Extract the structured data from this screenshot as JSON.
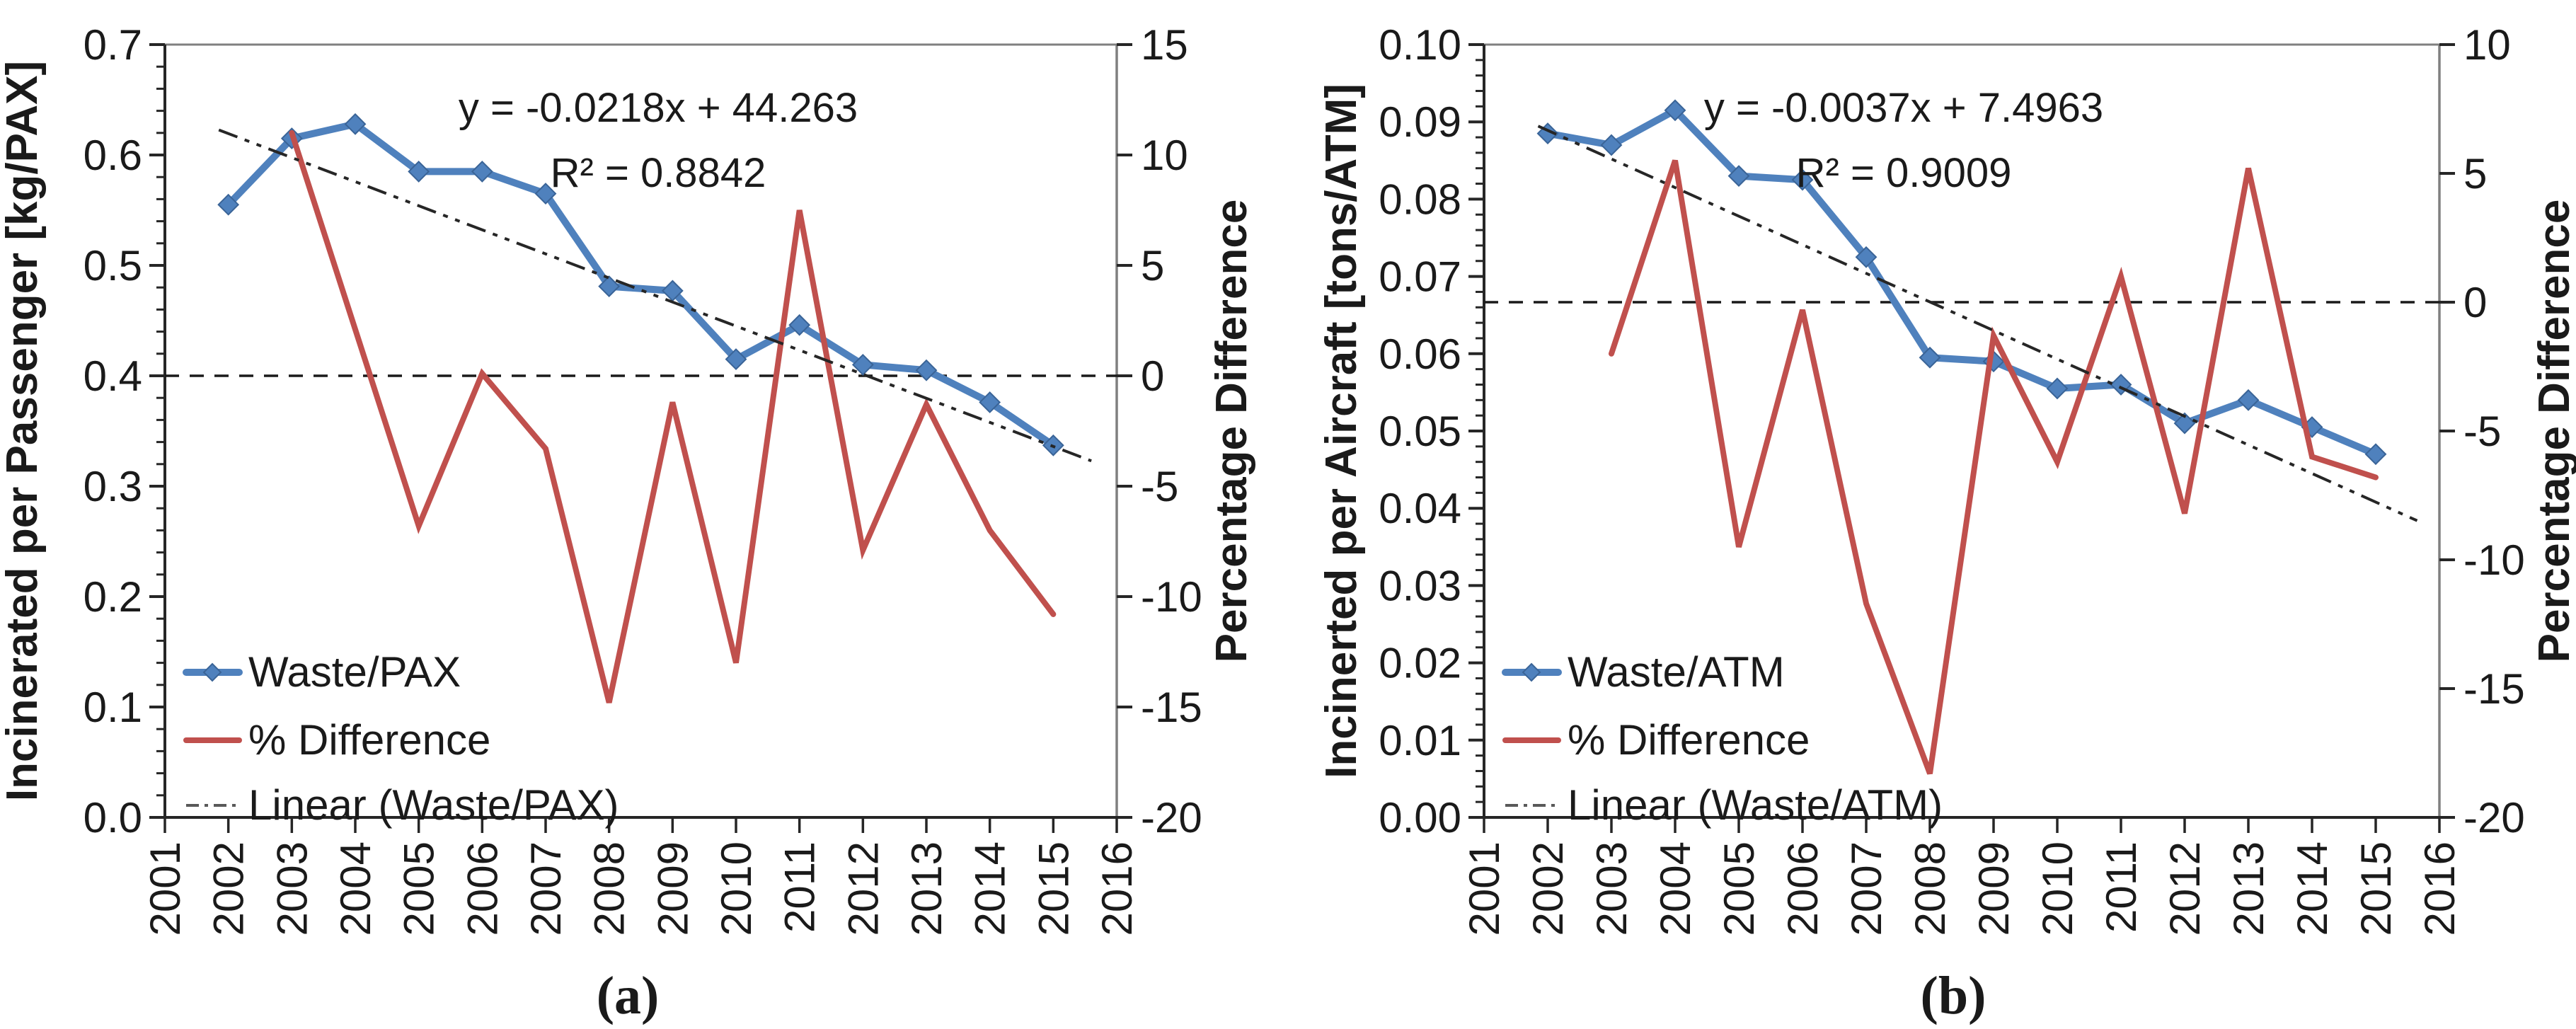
{
  "figure": {
    "background": "#ffffff",
    "captions": {
      "a": "(a)",
      "b": "(b)"
    }
  },
  "chart_data": [
    {
      "id": "a",
      "type": "line",
      "caption": "(a)",
      "x": {
        "min": 2001,
        "max": 2016,
        "tick_step": 1,
        "tick_labels": [
          "2001",
          "2002",
          "2003",
          "2004",
          "2005",
          "2006",
          "2007",
          "2008",
          "2009",
          "2010",
          "2011",
          "2012",
          "2013",
          "2014",
          "2015",
          "2016"
        ]
      },
      "y_left": {
        "label": "Incinerated per Passenger [kg/PAX]",
        "min": 0.0,
        "max": 0.7,
        "major": 0.1,
        "minor": 0.02,
        "decimals": 1,
        "tick_labels": [
          "0.0",
          "0.1",
          "0.2",
          "0.3",
          "0.4",
          "0.5",
          "0.6",
          "0.7"
        ]
      },
      "y_right": {
        "label": "Percentage Difference",
        "min": -20,
        "max": 15,
        "major": 5,
        "tick_labels": [
          "-20",
          "-15",
          "-10",
          "-5",
          "0",
          "5",
          "10",
          "15"
        ]
      },
      "annotation": {
        "line1": "y = -0.0218x + 44.263",
        "line2": "R² = 0.8842"
      },
      "zero_line_right_value": 0,
      "legend": [
        "Waste/PAX",
        "% Difference",
        "Linear (Waste/PAX)"
      ],
      "series": [
        {
          "name": "Waste/PAX",
          "kind": "data",
          "axis": "left",
          "color": "#4F81BD",
          "marker": "diamond",
          "years": [
            2002,
            2003,
            2004,
            2005,
            2006,
            2007,
            2008,
            2009,
            2010,
            2011,
            2012,
            2013,
            2014,
            2015
          ],
          "values": [
            0.555,
            0.615,
            0.628,
            0.585,
            0.585,
            0.565,
            0.481,
            0.477,
            0.415,
            0.446,
            0.41,
            0.405,
            0.376,
            0.337
          ]
        },
        {
          "name": "% Difference",
          "kind": "data",
          "axis": "right",
          "color": "#C0504D",
          "marker": "none",
          "years": [
            2003,
            2004,
            2005,
            2006,
            2007,
            2008,
            2009,
            2010,
            2011,
            2012,
            2013,
            2014,
            2015
          ],
          "values": [
            11.0,
            2.1,
            -6.8,
            0.1,
            -3.3,
            -14.8,
            -1.2,
            -13.0,
            7.5,
            -7.9,
            -1.3,
            -7.0,
            -10.8
          ]
        },
        {
          "name": "Linear (Waste/PAX)",
          "kind": "trend",
          "axis": "left",
          "color": "#262626",
          "slope": -0.0218,
          "intercept": 44.263,
          "x_start": 2001.85,
          "x_end": 2015.6
        }
      ]
    },
    {
      "id": "b",
      "type": "line",
      "caption": "(b)",
      "x": {
        "min": 2001,
        "max": 2016,
        "tick_step": 1,
        "tick_labels": [
          "2001",
          "2002",
          "2003",
          "2004",
          "2005",
          "2006",
          "2007",
          "2008",
          "2009",
          "2010",
          "2011",
          "2012",
          "2013",
          "2014",
          "2015",
          "2016"
        ]
      },
      "y_left": {
        "label": "Incinerted per Aircraft [tons/ATM]",
        "min": 0.0,
        "max": 0.1,
        "major": 0.01,
        "minor": 0.002,
        "decimals": 2,
        "tick_labels": [
          "0.00",
          "0.01",
          "0.02",
          "0.03",
          "0.04",
          "0.05",
          "0.06",
          "0.07",
          "0.08",
          "0.09",
          "0.10"
        ]
      },
      "y_right": {
        "label": "Percentage Difference",
        "min": -20,
        "max": 10,
        "major": 5,
        "tick_labels": [
          "-20",
          "-15",
          "-10",
          "-5",
          "0",
          "5",
          "10"
        ]
      },
      "annotation": {
        "line1": "y = -0.0037x + 7.4963",
        "line2": "R² = 0.9009"
      },
      "zero_line_right_value": 0,
      "legend": [
        "Waste/ATM",
        "% Difference",
        "Linear (Waste/ATM)"
      ],
      "series": [
        {
          "name": "Waste/ATM",
          "kind": "data",
          "axis": "left",
          "color": "#4F81BD",
          "marker": "diamond",
          "years": [
            2002,
            2003,
            2004,
            2005,
            2006,
            2007,
            2008,
            2009,
            2010,
            2011,
            2012,
            2013,
            2014,
            2015
          ],
          "values": [
            0.0885,
            0.087,
            0.0915,
            0.083,
            0.0825,
            0.0725,
            0.0595,
            0.059,
            0.0555,
            0.056,
            0.051,
            0.054,
            0.0505,
            0.047
          ]
        },
        {
          "name": "% Difference",
          "kind": "data",
          "axis": "right",
          "color": "#C0504D",
          "marker": "none",
          "years": [
            2003,
            2004,
            2005,
            2006,
            2007,
            2008,
            2009,
            2010,
            2011,
            2012,
            2013,
            2014,
            2015
          ],
          "values": [
            -2.0,
            5.5,
            -9.5,
            -0.3,
            -11.7,
            -18.3,
            -1.3,
            -6.2,
            1.0,
            -8.2,
            5.2,
            -6.0,
            -6.8
          ]
        },
        {
          "name": "Linear (Waste/ATM)",
          "kind": "trend",
          "axis": "left",
          "color": "#262626",
          "slope": -0.0037,
          "intercept": 7.4963,
          "x_start": 2001.85,
          "x_end": 2015.65
        }
      ]
    }
  ]
}
